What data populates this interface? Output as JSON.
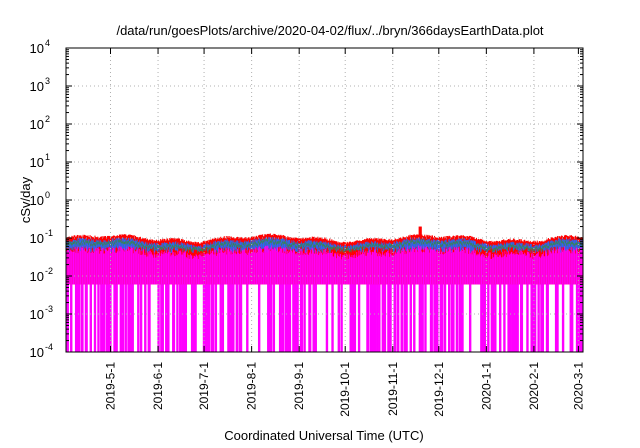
{
  "chart_data": {
    "type": "area",
    "title": "/data/run/goesPlots/archive/2020-04-02/flux/../bryn/366daysEarthData.plot",
    "xlabel": "Coordinated Universal Time (UTC)",
    "ylabel": "cSv/day",
    "yscale": "log",
    "ylim": [
      0.0001,
      10000
    ],
    "yticks": [
      {
        "value": 0.0001,
        "base": "10",
        "exp": "-4"
      },
      {
        "value": 0.001,
        "base": "10",
        "exp": "-3"
      },
      {
        "value": 0.01,
        "base": "10",
        "exp": "-2"
      },
      {
        "value": 0.1,
        "base": "10",
        "exp": "-1"
      },
      {
        "value": 1,
        "base": "10",
        "exp": "0"
      },
      {
        "value": 10,
        "base": "10",
        "exp": "1"
      },
      {
        "value": 100,
        "base": "10",
        "exp": "2"
      },
      {
        "value": 1000,
        "base": "10",
        "exp": "3"
      },
      {
        "value": 10000,
        "base": "10",
        "exp": "4"
      }
    ],
    "xlim": [
      "2019-04-02",
      "2020-03-04"
    ],
    "xticks": [
      "2019-5-1",
      "2019-6-1",
      "2019-7-1",
      "2019-8-1",
      "2019-9-1",
      "2019-10-1",
      "2019-11-1",
      "2019-12-1",
      "2020-1-1",
      "2020-2-1",
      "2020-3-1"
    ],
    "grid": true,
    "series": [
      {
        "color": "#ff0000",
        "typical_max": 0.12,
        "peak": 0.2
      },
      {
        "color": "#2e8b57",
        "typical_max": 0.09
      },
      {
        "color": "#1e6fff",
        "typical_max": 0.1,
        "typical_min": 0.05
      },
      {
        "color": "#ff00ff",
        "typical_max": 0.06,
        "floor": 0.006,
        "dropouts_to": 0.0001
      }
    ]
  }
}
